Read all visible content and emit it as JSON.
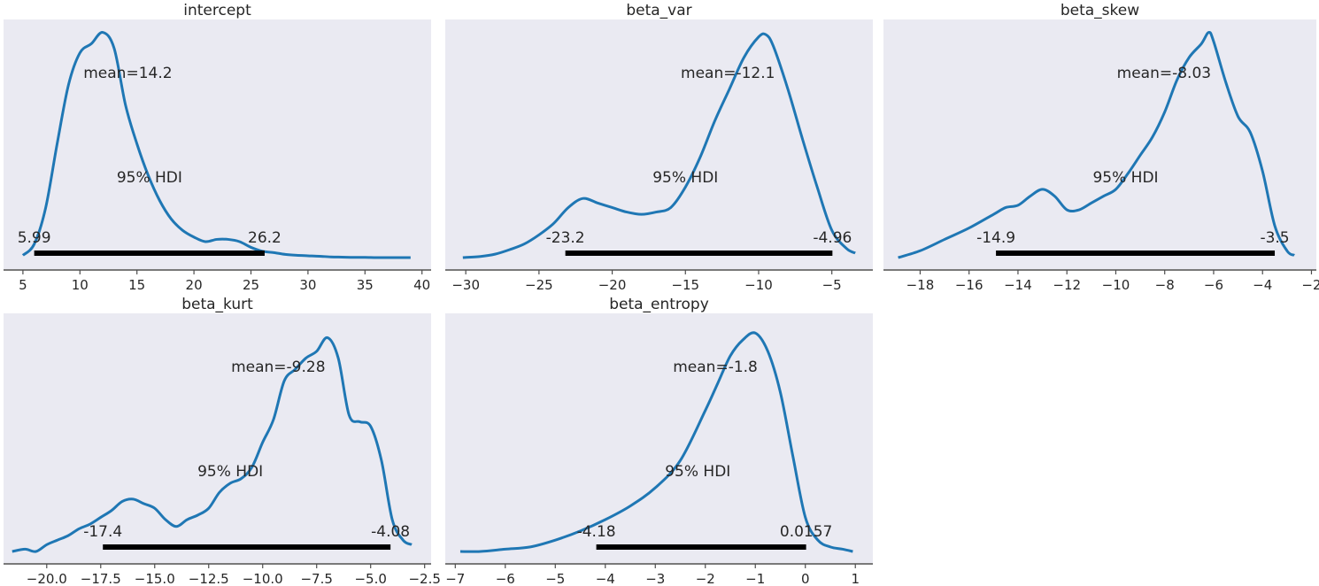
{
  "chart_data": [
    {
      "type": "area",
      "title": "intercept",
      "xlabel": "",
      "ylabel": "",
      "xlim": [
        3.3,
        40.8
      ],
      "xticks": [
        5,
        10,
        15,
        20,
        25,
        30,
        35,
        40
      ],
      "tick_labels": [
        "5",
        "10",
        "15",
        "20",
        "25",
        "30",
        "35",
        "40"
      ],
      "mean_label": "mean=14.2",
      "hdi_label": "95% HDI",
      "hdi": [
        5.99,
        26.2
      ],
      "hdi_low_label": "5.99",
      "hdi_high_label": "26.2",
      "grid": false,
      "x": [
        5.0,
        6.0,
        7.0,
        8.0,
        9.0,
        10.0,
        11.0,
        12.0,
        13.0,
        14.0,
        15.0,
        16.0,
        17.0,
        18.0,
        19.0,
        20.0,
        21.0,
        22.0,
        23.0,
        24.0,
        25.0,
        26.0,
        27.0,
        28.0,
        29.0,
        30.0,
        31.0,
        32.0,
        33.0,
        34.0,
        35.0,
        36.0,
        37.0,
        38.0,
        39.0
      ],
      "density": [
        0.01,
        0.06,
        0.22,
        0.5,
        0.76,
        0.9,
        0.94,
        0.99,
        0.92,
        0.67,
        0.5,
        0.36,
        0.25,
        0.17,
        0.12,
        0.09,
        0.07,
        0.08,
        0.08,
        0.07,
        0.045,
        0.028,
        0.022,
        0.014,
        0.01,
        0.008,
        0.006,
        0.003,
        0.002,
        0.001,
        0.001,
        0.0,
        0.0,
        0.0,
        0.0
      ]
    },
    {
      "type": "area",
      "title": "beta_var",
      "xlabel": "",
      "ylabel": "",
      "xlim": [
        -31.4,
        -2.2
      ],
      "xticks": [
        -30,
        -25,
        -20,
        -15,
        -10,
        -5
      ],
      "tick_labels": [
        "−30",
        "−25",
        "−20",
        "−15",
        "−10",
        "−5"
      ],
      "mean_label": "mean=-12.1",
      "hdi_label": "95% HDI",
      "hdi": [
        -23.2,
        -4.96
      ],
      "hdi_low_label": "-23.2",
      "hdi_high_label": "-4.96",
      "grid": false,
      "x": [
        -30.2,
        -29,
        -28,
        -27,
        -26,
        -25,
        -24,
        -23,
        -22,
        -21,
        -20,
        -19,
        -18,
        -17,
        -16,
        -15,
        -14,
        -13,
        -12,
        -11,
        -10,
        -9.5,
        -9,
        -8,
        -7,
        -6,
        -5,
        -4,
        -3.4
      ],
      "density": [
        0.0,
        0.005,
        0.015,
        0.035,
        0.06,
        0.1,
        0.15,
        0.22,
        0.26,
        0.24,
        0.22,
        0.2,
        0.19,
        0.2,
        0.22,
        0.31,
        0.44,
        0.6,
        0.74,
        0.88,
        0.97,
        0.98,
        0.93,
        0.74,
        0.52,
        0.31,
        0.12,
        0.04,
        0.02
      ]
    },
    {
      "type": "area",
      "title": "beta_skew",
      "xlabel": "",
      "ylabel": "",
      "xlim": [
        -19.5,
        -1.8
      ],
      "xticks": [
        -18,
        -16,
        -14,
        -12,
        -10,
        -8,
        -6,
        -4,
        -2
      ],
      "tick_labels": [
        "−18",
        "−16",
        "−14",
        "−12",
        "−10",
        "−8",
        "−6",
        "−4",
        "−2"
      ],
      "mean_label": "mean=-8.03",
      "hdi_label": "95% HDI",
      "hdi": [
        -14.9,
        -3.5
      ],
      "hdi_low_label": "-14.9",
      "hdi_high_label": "-3.5",
      "grid": false,
      "x": [
        -18.9,
        -18,
        -17,
        -16,
        -15,
        -14.5,
        -14,
        -13.5,
        -13,
        -12.5,
        -12,
        -11.5,
        -11,
        -10.5,
        -10,
        -9.5,
        -9,
        -8.5,
        -8,
        -7.5,
        -7,
        -6.5,
        -6.2,
        -6,
        -5.5,
        -5,
        -4.5,
        -4,
        -3.5,
        -3,
        -2.7
      ],
      "density": [
        0.0,
        0.03,
        0.08,
        0.13,
        0.19,
        0.22,
        0.23,
        0.27,
        0.3,
        0.27,
        0.21,
        0.21,
        0.24,
        0.27,
        0.3,
        0.37,
        0.45,
        0.53,
        0.64,
        0.78,
        0.88,
        0.94,
        0.99,
        0.95,
        0.77,
        0.62,
        0.55,
        0.38,
        0.14,
        0.03,
        0.01
      ]
    },
    {
      "type": "area",
      "title": "beta_kurt",
      "xlabel": "",
      "ylabel": "",
      "xlim": [
        -22.0,
        -2.2
      ],
      "xticks": [
        -20,
        -17.5,
        -15,
        -12.5,
        -10,
        -7.5,
        -5,
        -2.5
      ],
      "tick_labels": [
        "−20.0",
        "−17.5",
        "−15.0",
        "−12.5",
        "−10.0",
        "−7.5",
        "−5.0",
        "−2.5"
      ],
      "mean_label": "mean=-9.28",
      "hdi_label": "95% HDI",
      "hdi": [
        -17.4,
        -4.08
      ],
      "hdi_low_label": "-17.4",
      "hdi_high_label": "-4.08",
      "grid": false,
      "x": [
        -21.6,
        -21,
        -20.5,
        -20,
        -19.5,
        -19,
        -18.5,
        -18,
        -17.5,
        -17,
        -16.5,
        -16,
        -15.5,
        -15,
        -14.5,
        -14,
        -13.5,
        -13,
        -12.5,
        -12,
        -11.5,
        -11,
        -10.5,
        -10,
        -9.5,
        -9,
        -8.5,
        -8,
        -7.5,
        -7,
        -6.5,
        -6,
        -5.5,
        -5,
        -4.5,
        -4,
        -3.5,
        -3.1
      ],
      "density": [
        0.0,
        0.01,
        0.0,
        0.03,
        0.05,
        0.07,
        0.1,
        0.12,
        0.15,
        0.18,
        0.22,
        0.23,
        0.21,
        0.19,
        0.14,
        0.11,
        0.14,
        0.16,
        0.19,
        0.26,
        0.3,
        0.32,
        0.37,
        0.48,
        0.58,
        0.75,
        0.8,
        0.85,
        0.88,
        0.94,
        0.85,
        0.6,
        0.57,
        0.55,
        0.4,
        0.14,
        0.05,
        0.03
      ]
    },
    {
      "type": "area",
      "title": "beta_entropy",
      "xlabel": "",
      "ylabel": "",
      "xlim": [
        -7.2,
        1.35
      ],
      "xticks": [
        -7,
        -6,
        -5,
        -4,
        -3,
        -2,
        -1,
        0,
        1
      ],
      "tick_labels": [
        "−7",
        "−6",
        "−5",
        "−4",
        "−3",
        "−2",
        "−1",
        "0",
        "1"
      ],
      "mean_label": "mean=-1.8",
      "hdi_label": "95% HDI",
      "hdi": [
        -4.18,
        0.0157
      ],
      "hdi_low_label": "-4.18",
      "hdi_high_label": "0.0157",
      "grid": false,
      "x": [
        -6.9,
        -6.5,
        -6.0,
        -5.5,
        -5.0,
        -4.5,
        -4.0,
        -3.5,
        -3.0,
        -2.5,
        -2.0,
        -1.75,
        -1.5,
        -1.25,
        -1.0,
        -0.75,
        -0.5,
        -0.25,
        0.0,
        0.25,
        0.5,
        0.75,
        0.95
      ],
      "density": [
        0.0,
        0.0,
        0.01,
        0.02,
        0.05,
        0.09,
        0.14,
        0.2,
        0.28,
        0.4,
        0.62,
        0.74,
        0.86,
        0.93,
        0.96,
        0.88,
        0.7,
        0.42,
        0.15,
        0.05,
        0.02,
        0.01,
        0.0
      ]
    }
  ],
  "colors": {
    "plot_background": "#eaeaf2",
    "density_line": "#1f77b4",
    "hdi_bar": "#000000",
    "axis_line": "#4d4d4d",
    "text": "#262626"
  }
}
